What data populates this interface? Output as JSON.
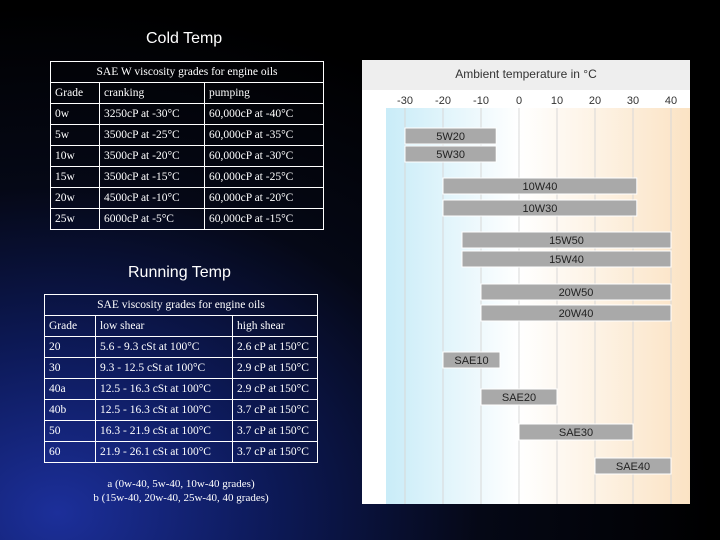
{
  "cold": {
    "title": "Cold Temp",
    "caption": "SAE W viscosity grades for engine oils",
    "headers": [
      "Grade",
      "cranking",
      "pumping"
    ],
    "rows": [
      [
        "0w",
        "3250cP at -30°C",
        "60,000cP at -40°C"
      ],
      [
        "5w",
        "3500cP at -25°C",
        "60,000cP at -35°C"
      ],
      [
        "10w",
        "3500cP at -20°C",
        "60,000cP at -30°C"
      ],
      [
        "15w",
        "3500cP at -15°C",
        "60,000cP at -25°C"
      ],
      [
        "20w",
        "4500cP at -10°C",
        "60,000cP at -20°C"
      ],
      [
        "25w",
        "6000cP at -5°C",
        "60,000cP at -15°C"
      ]
    ]
  },
  "running": {
    "title": "Running Temp",
    "caption": "SAE viscosity grades for engine oils",
    "headers": [
      "Grade",
      "low shear",
      "high shear"
    ],
    "rows": [
      [
        "20",
        "5.6 - 9.3 cSt at 100°C",
        "2.6 cP at 150°C"
      ],
      [
        "30",
        "9.3 - 12.5 cSt at 100°C",
        "2.9 cP at 150°C"
      ],
      [
        "40a",
        "12.5 - 16.3 cSt at 100°C",
        "2.9 cP at 150°C"
      ],
      [
        "40b",
        "12.5 - 16.3 cSt at 100°C",
        "3.7 cP at 150°C"
      ],
      [
        "50",
        "16.3 - 21.9 cSt at 100°C",
        "3.7 cP at 150°C"
      ],
      [
        "60",
        "21.9 - 26.1 cSt at 100°C",
        "3.7 cP at 150°C"
      ]
    ],
    "footnote_a": "a (0w-40, 5w-40, 10w-40 grades)",
    "footnote_b": "b (15w-40, 20w-40, 25w-40, 40 grades)"
  },
  "colors": {
    "cold_zone": "#c9ecf8",
    "warm_zone": "#fbe3c4",
    "bar": "#a9a9a9",
    "bar_border": "#ffffff"
  },
  "chart_data": {
    "type": "bar",
    "orientation": "horizontal-range",
    "title": "Ambient temperature in °C",
    "x_ticks": [
      -30,
      -20,
      -10,
      0,
      10,
      20,
      30,
      40
    ],
    "xlim": [
      -35,
      45
    ],
    "bars": [
      {
        "label": "5W20",
        "start": -30,
        "end": -6
      },
      {
        "label": "5W30",
        "start": -30,
        "end": -6
      },
      {
        "label": "10W40",
        "start": -20,
        "end": 31
      },
      {
        "label": "10W30",
        "start": -20,
        "end": 31
      },
      {
        "label": "15W50",
        "start": -15,
        "end": 40
      },
      {
        "label": "15W40",
        "start": -15,
        "end": 40
      },
      {
        "label": "20W50",
        "start": -10,
        "end": 40
      },
      {
        "label": "20W40",
        "start": -10,
        "end": 40
      },
      {
        "label": "SAE10",
        "start": -20,
        "end": -5
      },
      {
        "label": "SAE20",
        "start": -10,
        "end": 10
      },
      {
        "label": "SAE30",
        "start": 0,
        "end": 30
      },
      {
        "label": "SAE40",
        "start": 20,
        "end": 40
      }
    ]
  }
}
